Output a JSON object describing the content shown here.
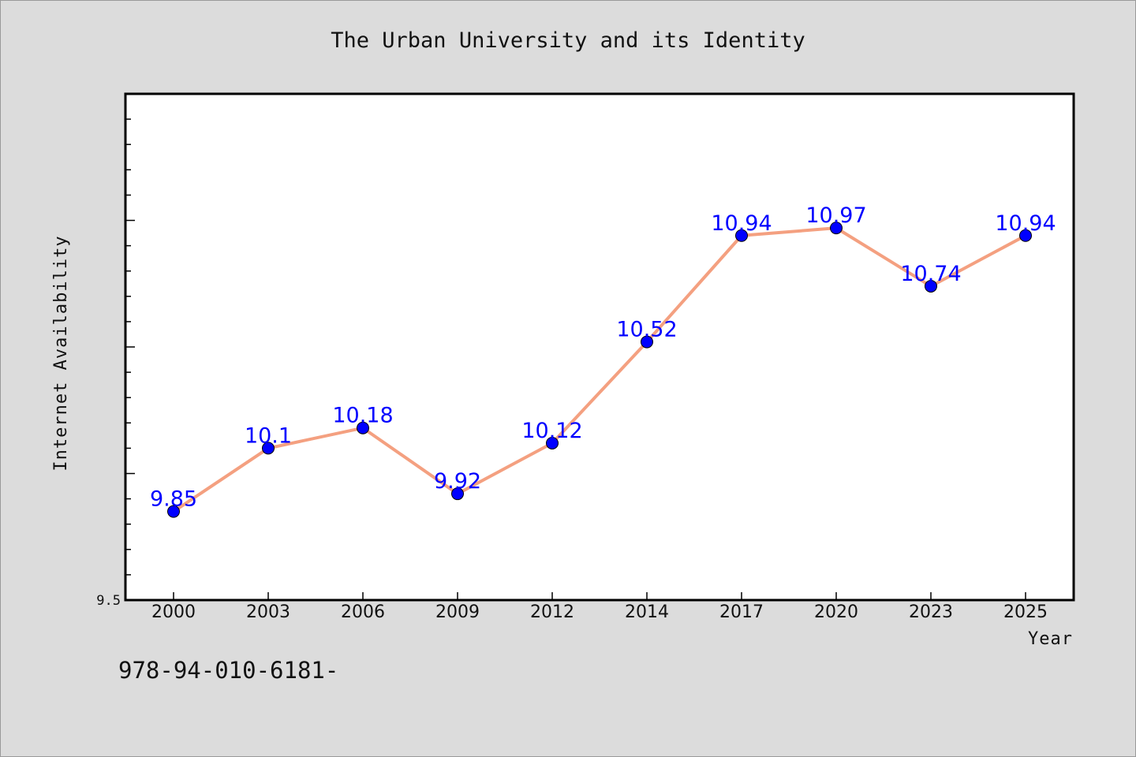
{
  "chart_data": {
    "type": "line",
    "title": "The Urban University and its Identity",
    "xlabel": "Year",
    "ylabel": "Internet Availability",
    "categories": [
      "2000",
      "2003",
      "2006",
      "2009",
      "2012",
      "2014",
      "2017",
      "2020",
      "2023",
      "2025"
    ],
    "series": [
      {
        "values": [
          9.85,
          10.1,
          10.18,
          9.92,
          10.12,
          10.52,
          10.94,
          10.97,
          10.74,
          10.94
        ],
        "labels": [
          "9.85",
          "10.1",
          "10.18",
          "9.92",
          "10.12",
          "10.52",
          "10.94",
          "10.97",
          "10.74",
          "10.94"
        ],
        "line_color": "#f4a080",
        "marker_color": "#0000ff"
      }
    ],
    "ylim": [
      9.5,
      11.5
    ],
    "yticks_labeled": [
      "9.5"
    ],
    "grid": false,
    "legend": "none"
  },
  "footer": {
    "code": "978-94-010-6181-"
  },
  "colors": {
    "background": "#dcdcdc",
    "plot_background": "#ffffff",
    "line": "#f4a080",
    "marker": "#0000ff",
    "data_label": "#0000ff"
  }
}
